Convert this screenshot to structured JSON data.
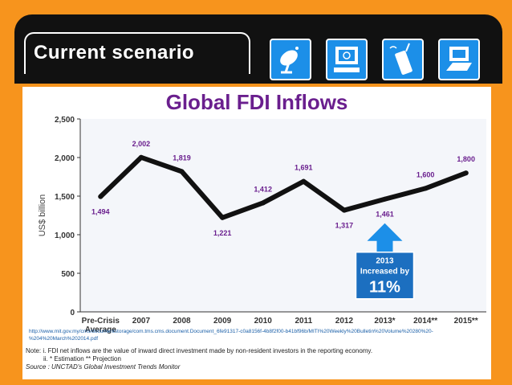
{
  "header": {
    "title": "Current scenario",
    "icons": [
      "satellite-dish-icon",
      "computer-icon",
      "mobile-phone-icon",
      "laptop-icon"
    ]
  },
  "slide": {
    "title": "Global FDI Inflows",
    "url": "http://www.mit.gov.my/cms/documentstorage/com.tms.cms.document.Document_6fe91317-c0a8156f-4b8f2f00-b41bf96b/MITI%20Weekly%20Bulletin%20Volume%20280%20-%204%20March%202014.pdf",
    "notes": [
      "Note:  i. FDI net inflows are the value of inward direct investment made by non-resident investors in the reporting economy.",
      "ii. * Estimation   ** Projection"
    ],
    "source": "Source : UNCTAD's Global Investment Trends Monitor",
    "callout": {
      "line1": "2013",
      "line2": "Increased by",
      "big": "11%"
    }
  },
  "chart_data": {
    "type": "line",
    "title": "Global FDI Inflows",
    "ylabel": "US$ billion",
    "xlabel": "",
    "categories": [
      "Pre-Crisis Average",
      "2007",
      "2008",
      "2009",
      "2010",
      "2011",
      "2012",
      "2013*",
      "2014**",
      "2015**"
    ],
    "category_lines": [
      [
        "Pre-Crisis",
        "Average"
      ],
      [
        "2007"
      ],
      [
        "2008"
      ],
      [
        "2009"
      ],
      [
        "2010"
      ],
      [
        "2011"
      ],
      [
        "2012"
      ],
      [
        "2013*"
      ],
      [
        "2014**"
      ],
      [
        "2015**"
      ]
    ],
    "values": [
      1494,
      2002,
      1819,
      1221,
      1412,
      1691,
      1317,
      1461,
      1600,
      1800
    ],
    "data_labels": [
      "1,494",
      "2,002",
      "1,819",
      "1,221",
      "1,412",
      "1,691",
      "1,317",
      "1,461",
      "1,600",
      "1,800"
    ],
    "yticks": [
      0,
      500,
      1000,
      1500,
      2000,
      2500
    ],
    "ytick_labels": [
      "0",
      "500",
      "1,000",
      "1,500",
      "2,000",
      "2,500"
    ],
    "ylim": [
      0,
      2500
    ],
    "line_color": "#111111",
    "label_color": "#6a1f8e",
    "grid": false
  }
}
